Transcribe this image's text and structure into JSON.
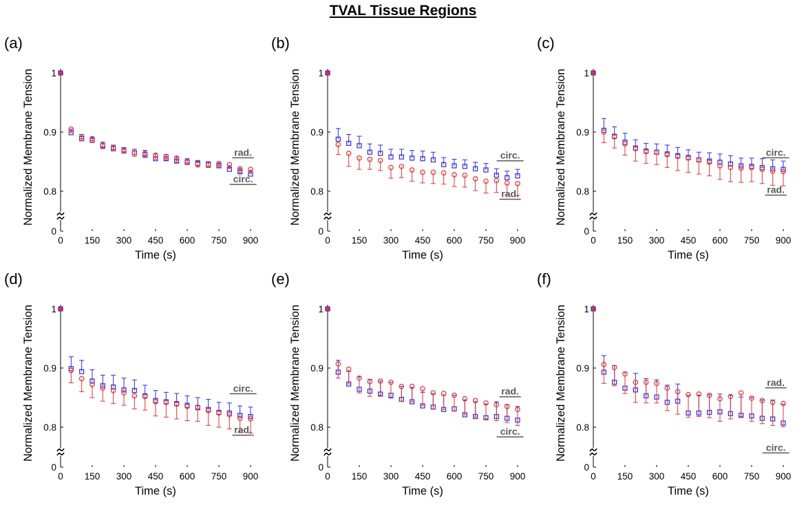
{
  "title": "TVAL Tissue Regions",
  "colors": {
    "circ": "#2a2ae0",
    "rad": "#e63232",
    "label": "#595959"
  },
  "chart_data": [
    {
      "type": "scatter",
      "panel_label": "(a)",
      "xlabel": "Time (s)",
      "ylabel": "Normalized Membrane Tension",
      "xlim": [
        0,
        900
      ],
      "ylim": [
        0,
        1
      ],
      "xticks": [
        "0",
        "150",
        "300",
        "450",
        "600",
        "750",
        "900"
      ],
      "yticks": [
        "0",
        "0.8",
        "0.9",
        "1"
      ],
      "axis_break": true,
      "x": [
        0,
        50,
        100,
        150,
        200,
        250,
        300,
        350,
        400,
        450,
        500,
        550,
        600,
        650,
        700,
        750,
        800,
        850,
        900
      ],
      "series": [
        {
          "name": "circ.",
          "marker": "square",
          "values": [
            1,
            0.899,
            0.889,
            0.886,
            0.877,
            0.872,
            0.868,
            0.865,
            0.862,
            0.855,
            0.855,
            0.851,
            0.849,
            0.847,
            0.845,
            0.843,
            0.837,
            0.833,
            0.829
          ],
          "error": [
            0,
            0.006,
            0.007,
            0.005,
            0.006,
            0.006,
            0.006,
            0.006,
            0.007,
            0.008,
            0.007,
            0.007,
            0.006,
            0.005,
            0.005,
            0.005,
            0.006,
            0.006,
            0.006
          ]
        },
        {
          "name": "rad.",
          "marker": "circle",
          "values": [
            1,
            0.905,
            0.892,
            0.889,
            0.878,
            0.874,
            0.87,
            0.865,
            0.864,
            0.861,
            0.859,
            0.856,
            0.851,
            0.846,
            0.845,
            0.847,
            0.845,
            0.838,
            0.837
          ],
          "error": [
            0,
            0.006,
            0.007,
            0.006,
            0.006,
            0.006,
            0.005,
            0.006,
            0.007,
            0.007,
            0.006,
            0.007,
            0.006,
            0.005,
            0.005,
            0.006,
            0.006,
            0.007,
            0.007
          ]
        }
      ],
      "annotations": [
        {
          "text": "rad.",
          "x": 845,
          "y": 0.86
        },
        {
          "text": "circ.",
          "x": 845,
          "y": 0.815
        }
      ]
    },
    {
      "type": "scatter",
      "panel_label": "(b)",
      "xlabel": "Time (s)",
      "ylabel": "Normalized Membrane Tension",
      "xlim": [
        0,
        900
      ],
      "ylim": [
        0,
        1
      ],
      "xticks": [
        "0",
        "150",
        "300",
        "450",
        "600",
        "750",
        "900"
      ],
      "yticks": [
        "0",
        "0.8",
        "0.9",
        "1"
      ],
      "axis_break": true,
      "x": [
        0,
        50,
        100,
        150,
        200,
        250,
        300,
        350,
        400,
        450,
        500,
        550,
        600,
        650,
        700,
        750,
        800,
        850,
        900
      ],
      "series": [
        {
          "name": "circ.",
          "marker": "square",
          "values": [
            1,
            0.888,
            0.881,
            0.877,
            0.866,
            0.864,
            0.858,
            0.858,
            0.856,
            0.855,
            0.853,
            0.845,
            0.843,
            0.842,
            0.838,
            0.836,
            0.827,
            0.823,
            0.826
          ],
          "error": [
            0,
            0.018,
            0.015,
            0.016,
            0.014,
            0.014,
            0.013,
            0.013,
            0.013,
            0.013,
            0.013,
            0.012,
            0.011,
            0.011,
            0.011,
            0.011,
            0.011,
            0.011,
            0.011
          ]
        },
        {
          "name": "rad.",
          "marker": "circle",
          "values": [
            1,
            0.879,
            0.864,
            0.856,
            0.854,
            0.852,
            0.84,
            0.842,
            0.836,
            0.832,
            0.832,
            0.831,
            0.828,
            0.827,
            0.821,
            0.817,
            0.818,
            0.814,
            0.813
          ],
          "error": [
            0,
            0.017,
            0.022,
            0.019,
            0.017,
            0.017,
            0.018,
            0.019,
            0.019,
            0.018,
            0.019,
            0.019,
            0.02,
            0.02,
            0.02,
            0.02,
            0.02,
            0.02,
            0.02
          ]
        }
      ],
      "annotations": [
        {
          "text": "circ.",
          "x": 845,
          "y": 0.855
        },
        {
          "text": "rad.",
          "x": 845,
          "y": 0.79
        }
      ]
    },
    {
      "type": "scatter",
      "panel_label": "(c)",
      "xlabel": "Time (s)",
      "ylabel": "Normalized Membrane Tension",
      "xlim": [
        0,
        900
      ],
      "ylim": [
        0,
        1
      ],
      "xticks": [
        "0",
        "150",
        "300",
        "450",
        "600",
        "750",
        "900"
      ],
      "yticks": [
        "0",
        "0.8",
        "0.9",
        "1"
      ],
      "axis_break": true,
      "x": [
        0,
        50,
        100,
        150,
        200,
        250,
        300,
        350,
        400,
        450,
        500,
        550,
        600,
        650,
        700,
        750,
        800,
        850,
        900
      ],
      "series": [
        {
          "name": "circ.",
          "marker": "square",
          "values": [
            1,
            0.903,
            0.893,
            0.883,
            0.873,
            0.868,
            0.866,
            0.863,
            0.86,
            0.857,
            0.853,
            0.851,
            0.849,
            0.846,
            0.843,
            0.842,
            0.84,
            0.838,
            0.837
          ],
          "error": [
            0,
            0.02,
            0.016,
            0.015,
            0.014,
            0.013,
            0.014,
            0.015,
            0.014,
            0.013,
            0.013,
            0.014,
            0.014,
            0.014,
            0.013,
            0.014,
            0.015,
            0.015,
            0.014
          ]
        },
        {
          "name": "rad.",
          "marker": "circle",
          "values": [
            1,
            0.9,
            0.892,
            0.88,
            0.872,
            0.867,
            0.866,
            0.862,
            0.859,
            0.856,
            0.853,
            0.849,
            0.843,
            0.84,
            0.839,
            0.84,
            0.837,
            0.834,
            0.833
          ],
          "error": [
            0,
            0.018,
            0.019,
            0.019,
            0.021,
            0.02,
            0.021,
            0.022,
            0.024,
            0.024,
            0.024,
            0.023,
            0.023,
            0.024,
            0.024,
            0.024,
            0.024,
            0.024,
            0.024
          ]
        }
      ],
      "annotations": [
        {
          "text": "circ.",
          "x": 845,
          "y": 0.86
        },
        {
          "text": "rad.",
          "x": 845,
          "y": 0.797
        }
      ]
    },
    {
      "type": "scatter",
      "panel_label": "(d)",
      "xlabel": "Time (s)",
      "ylabel": "Normalized Membrane Tension",
      "xlim": [
        0,
        900
      ],
      "ylim": [
        0,
        1
      ],
      "xticks": [
        "0",
        "150",
        "300",
        "450",
        "600",
        "750",
        "900"
      ],
      "yticks": [
        "0",
        "0.8",
        "0.9",
        "1"
      ],
      "axis_break": true,
      "x": [
        0,
        50,
        100,
        150,
        200,
        250,
        300,
        350,
        400,
        450,
        500,
        550,
        600,
        650,
        700,
        750,
        800,
        850,
        900
      ],
      "series": [
        {
          "name": "circ.",
          "marker": "square",
          "values": [
            1,
            0.899,
            0.894,
            0.878,
            0.87,
            0.868,
            0.863,
            0.862,
            0.853,
            0.845,
            0.843,
            0.84,
            0.837,
            0.833,
            0.83,
            0.825,
            0.824,
            0.82,
            0.818
          ],
          "error": [
            0,
            0.02,
            0.019,
            0.019,
            0.018,
            0.02,
            0.02,
            0.018,
            0.018,
            0.017,
            0.016,
            0.017,
            0.016,
            0.017,
            0.017,
            0.017,
            0.017,
            0.016,
            0.016
          ]
        },
        {
          "name": "rad.",
          "marker": "circle",
          "values": [
            1,
            0.896,
            0.882,
            0.872,
            0.866,
            0.862,
            0.858,
            0.853,
            0.852,
            0.843,
            0.842,
            0.839,
            0.835,
            0.834,
            0.828,
            0.824,
            0.821,
            0.815,
            0.814
          ],
          "error": [
            0,
            0.021,
            0.022,
            0.022,
            0.022,
            0.022,
            0.021,
            0.022,
            0.023,
            0.024,
            0.025,
            0.025,
            0.024,
            0.024,
            0.025,
            0.024,
            0.024,
            0.024,
            0.024
          ]
        }
      ],
      "annotations": [
        {
          "text": "circ.",
          "x": 845,
          "y": 0.86
        },
        {
          "text": "rad.",
          "x": 845,
          "y": 0.79
        }
      ]
    },
    {
      "type": "scatter",
      "panel_label": "(e)",
      "xlabel": "Time (s)",
      "ylabel": "Normalized Membrane Tension",
      "xlim": [
        0,
        900
      ],
      "ylim": [
        0,
        1
      ],
      "xticks": [
        "0",
        "150",
        "300",
        "450",
        "600",
        "750",
        "900"
      ],
      "yticks": [
        "0",
        "0.8",
        "0.9",
        "1"
      ],
      "axis_break": true,
      "x": [
        0,
        50,
        100,
        150,
        200,
        250,
        300,
        350,
        400,
        450,
        500,
        550,
        600,
        650,
        700,
        750,
        800,
        850,
        900
      ],
      "series": [
        {
          "name": "circ.",
          "marker": "square",
          "values": [
            1,
            0.893,
            0.873,
            0.864,
            0.861,
            0.856,
            0.854,
            0.847,
            0.843,
            0.836,
            0.834,
            0.83,
            0.831,
            0.821,
            0.818,
            0.816,
            0.818,
            0.815,
            0.812
          ],
          "error": [
            0,
            0.02,
            0.021,
            0.021,
            0.02,
            0.022,
            0.022,
            0.022,
            0.024,
            0.023,
            0.023,
            0.024,
            0.023,
            0.025,
            0.025,
            0.023,
            0.025,
            0.023,
            0.023
          ]
        },
        {
          "name": "rad.",
          "marker": "circle",
          "values": [
            1,
            0.907,
            0.898,
            0.883,
            0.877,
            0.878,
            0.876,
            0.869,
            0.869,
            0.865,
            0.858,
            0.857,
            0.854,
            0.848,
            0.845,
            0.841,
            0.838,
            0.835,
            0.83
          ],
          "error": [
            0,
            0.024,
            0.025,
            0.025,
            0.025,
            0.024,
            0.027,
            0.025,
            0.026,
            0.028,
            0.027,
            0.027,
            0.027,
            0.027,
            0.028,
            0.027,
            0.027,
            0.027,
            0.027
          ]
        }
      ],
      "annotations": [
        {
          "text": "rad.",
          "x": 845,
          "y": 0.855
        },
        {
          "text": "circ.",
          "x": 845,
          "y": 0.787
        }
      ]
    },
    {
      "type": "scatter",
      "panel_label": "(f)",
      "xlabel": "Time (s)",
      "ylabel": "Normalized Membrane Tension",
      "xlim": [
        0,
        900
      ],
      "ylim": [
        0,
        1
      ],
      "xticks": [
        "0",
        "150",
        "300",
        "450",
        "600",
        "750",
        "900"
      ],
      "yticks": [
        "0",
        "0.8",
        "0.9",
        "1"
      ],
      "axis_break": true,
      "x": [
        0,
        50,
        100,
        150,
        200,
        250,
        300,
        350,
        400,
        450,
        500,
        550,
        600,
        650,
        700,
        750,
        800,
        850,
        900
      ],
      "series": [
        {
          "name": "circ.",
          "marker": "square",
          "values": [
            1,
            0.893,
            0.876,
            0.866,
            0.863,
            0.853,
            0.851,
            0.842,
            0.844,
            0.824,
            0.824,
            0.825,
            0.826,
            0.823,
            0.82,
            0.819,
            0.815,
            0.814,
            0.807
          ],
          "error": [
            0,
            0.028,
            0.028,
            0.027,
            0.028,
            0.029,
            0.029,
            0.029,
            0.029,
            0.03,
            0.03,
            0.03,
            0.03,
            0.031,
            0.031,
            0.031,
            0.031,
            0.032,
            0.032
          ]
        },
        {
          "name": "rad.",
          "marker": "circle",
          "values": [
            1,
            0.906,
            0.901,
            0.89,
            0.876,
            0.876,
            0.874,
            0.866,
            0.86,
            0.855,
            0.856,
            0.854,
            0.848,
            0.852,
            0.858,
            0.849,
            0.845,
            0.842,
            0.84
          ],
          "error": [
            0,
            0.032,
            0.031,
            0.033,
            0.034,
            0.035,
            0.033,
            0.038,
            0.038,
            0.038,
            0.038,
            0.038,
            0.038,
            0.038,
            0.04,
            0.039,
            0.039,
            0.039,
            0.039
          ]
        }
      ],
      "annotations": [
        {
          "text": "rad.",
          "x": 845,
          "y": 0.87
        },
        {
          "text": "circ.",
          "x": 845,
          "y": 0.76
        }
      ]
    }
  ]
}
